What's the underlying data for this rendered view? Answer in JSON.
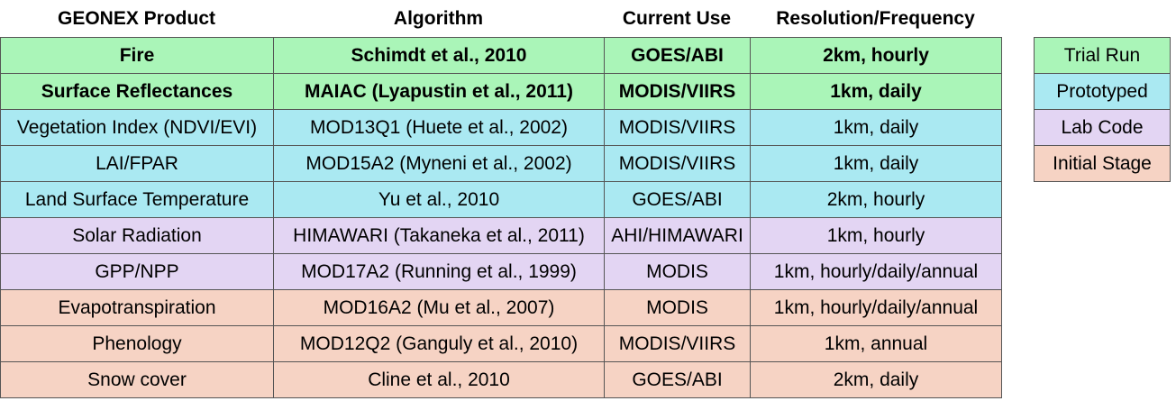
{
  "table": {
    "header": [
      "GEONEX Product",
      "Algorithm",
      "Current Use",
      "Resolution/Frequency"
    ],
    "rows": [
      [
        "Fire",
        "Schimdt et al., 2010",
        "GOES/ABI",
        "2km, hourly"
      ],
      [
        "Surface Reflectances",
        "MAIAC (Lyapustin et al., 2011)",
        "MODIS/VIIRS",
        "1km, daily"
      ],
      [
        "Vegetation Index (NDVI/EVI)",
        "MOD13Q1 (Huete et al., 2002)",
        "MODIS/VIIRS",
        "1km, daily"
      ],
      [
        "LAI/FPAR",
        "MOD15A2 (Myneni et al., 2002)",
        "MODIS/VIIRS",
        "1km, daily"
      ],
      [
        "Land Surface Temperature",
        "Yu et al., 2010",
        "GOES/ABI",
        "2km, hourly"
      ],
      [
        "Solar Radiation",
        "HIMAWARI (Takaneka et al., 2011)",
        "AHI/HIMAWARI",
        "1km, hourly"
      ],
      [
        "GPP/NPP",
        "MOD17A2 (Running et al., 1999)",
        "MODIS",
        "1km, hourly/daily/annual"
      ],
      [
        "Evapotranspiration",
        "MOD16A2 (Mu et al., 2007)",
        "MODIS",
        "1km, hourly/daily/annual"
      ],
      [
        "Phenology",
        "MOD12Q2 (Ganguly et al., 2010)",
        "MODIS/VIIRS",
        "1km, annual"
      ],
      [
        "Snow cover",
        "Cline et al., 2010",
        "GOES/ABI",
        "2km, daily"
      ]
    ]
  },
  "legend": [
    "Trial Run",
    "Prototyped",
    "Lab Code",
    "Initial Stage"
  ]
}
